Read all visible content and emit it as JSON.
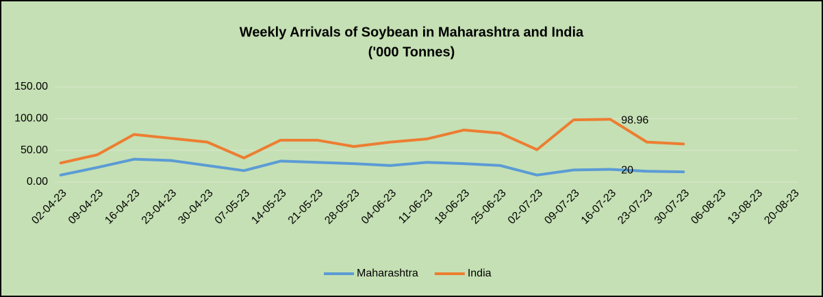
{
  "chart_data": {
    "type": "line",
    "title": [
      "Weekly Arrivals of Soybean in Maharashtra and India",
      "('000 Tonnes)"
    ],
    "categories": [
      "02-04-23",
      "09-04-23",
      "16-04-23",
      "23-04-23",
      "30-04-23",
      "07-05-23",
      "14-05-23",
      "21-05-23",
      "28-05-23",
      "04-06-23",
      "11-06-23",
      "18-06-23",
      "25-06-23",
      "02-07-23",
      "09-07-23",
      "16-07-23",
      "23-07-23",
      "30-07-23",
      "06-08-23",
      "13-08-23",
      "20-08-23"
    ],
    "series": [
      {
        "name": "Maharashtra",
        "color": "#5b9bd5",
        "values": [
          11,
          23,
          36,
          34,
          26,
          18,
          33,
          31,
          29,
          26,
          31,
          29,
          26,
          11,
          19,
          20,
          17,
          16,
          null,
          null,
          null
        ],
        "value_labels": [
          null,
          null,
          null,
          null,
          null,
          null,
          null,
          null,
          null,
          null,
          null,
          null,
          null,
          null,
          null,
          "20",
          null,
          null,
          null,
          null,
          null
        ]
      },
      {
        "name": "India",
        "color": "#ed7d31",
        "values": [
          30,
          43,
          75,
          69,
          63,
          38,
          66,
          66,
          56,
          63,
          68,
          82,
          77,
          51,
          98,
          98.96,
          63,
          60,
          null,
          null,
          null
        ],
        "value_labels": [
          null,
          null,
          null,
          null,
          null,
          null,
          null,
          null,
          null,
          null,
          null,
          null,
          null,
          null,
          null,
          "98.96",
          null,
          null,
          null,
          null,
          null
        ]
      }
    ],
    "ylim": [
      0,
      150
    ],
    "yticks": [
      {
        "value": 0,
        "label": "0.00"
      },
      {
        "value": 50,
        "label": "50.00"
      },
      {
        "value": 100,
        "label": "100.00"
      },
      {
        "value": 150,
        "label": "150.00"
      }
    ],
    "grid": true,
    "legend": "bottom",
    "background": "#c5e0b4"
  }
}
